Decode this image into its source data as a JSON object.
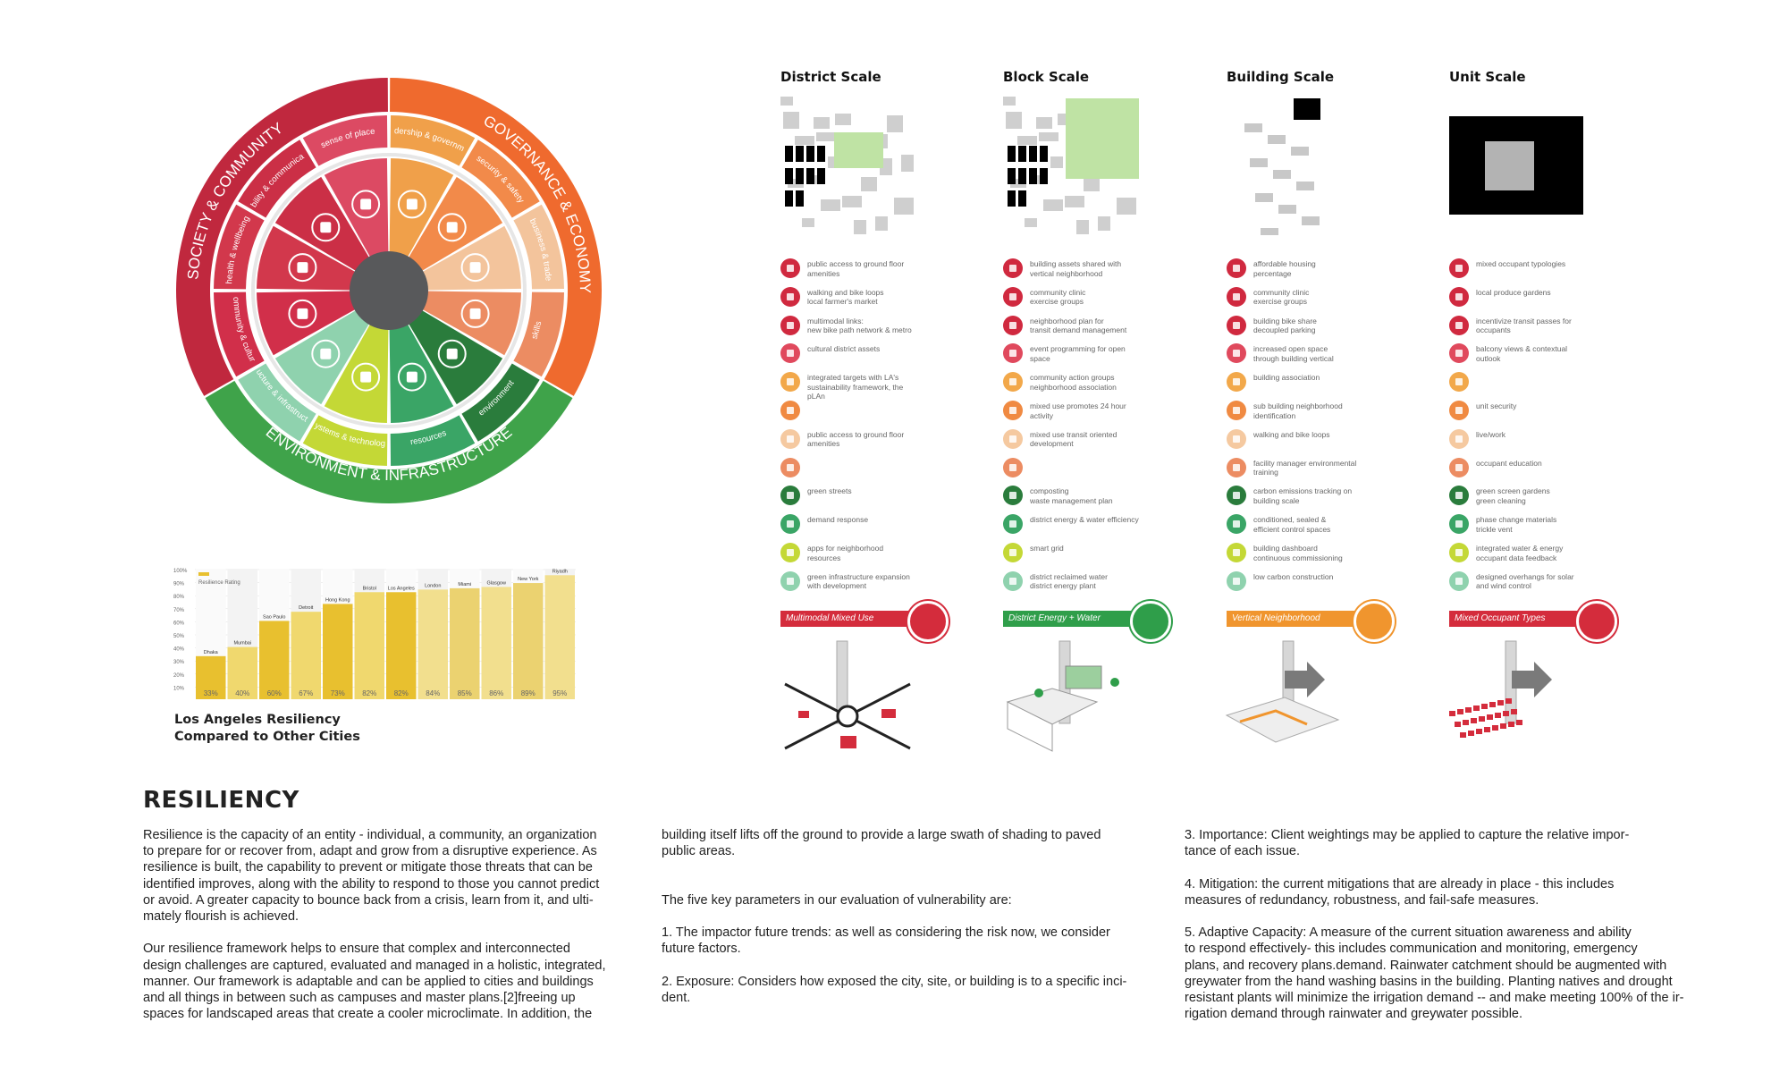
{
  "wheel": {
    "outer": [
      {
        "label": "SOCIETY & COMMUNITY",
        "color": "#c0283e"
      },
      {
        "label": "GOVERNANCE & ECONOMY",
        "color": "#ef6a2e"
      },
      {
        "label": "ENVIRONMENT & INFRASTRUCTURE",
        "color": "#3fa34a"
      }
    ],
    "ring": [
      {
        "label": "sense of place",
        "color": "#dc4a63"
      },
      {
        "label": "leadership & government",
        "color": "#f0a04a"
      },
      {
        "label": "security & safety",
        "color": "#f28a4a"
      },
      {
        "label": "business & trade",
        "color": "#f3c49c"
      },
      {
        "label": "skills",
        "color": "#ec8c62"
      },
      {
        "label": "environment",
        "color": "#2a7c3c"
      },
      {
        "label": "resources",
        "color": "#3aa566"
      },
      {
        "label": "systems & technology",
        "color": "#c4d836"
      },
      {
        "label": "structure & infrastructure",
        "color": "#8fd2ae"
      },
      {
        "label": "community & culture",
        "color": "#d12f4a"
      },
      {
        "label": "health & wellbeing",
        "color": "#d2384c"
      },
      {
        "label": "mobility & communication",
        "color": "#cb2f46"
      }
    ],
    "icons": [
      "flag-icon",
      "handshake-icon",
      "house-shield-icon",
      "briefcase-icon",
      "graduation-cap-icon",
      "globe-icon",
      "sun-icon",
      "at-icon",
      "rail-icon",
      "people-icon",
      "person-icon",
      "transit-icon"
    ]
  },
  "scales": [
    {
      "title": "District Scale",
      "items": [
        "public access to ground floor\namenities",
        "walking and bike loops\nlocal farmer's market",
        "multimodal links:\nnew bike path network & metro",
        "cultural district assets",
        "integrated targets with LA's\nsustainability framework, the\npLAn",
        "",
        "public access to ground floor\namenities",
        "",
        "green streets",
        "demand response",
        "apps for neighborhood\nresources",
        "green infrastructure expansion\nwith development"
      ],
      "banner": "Multimodal Mixed Use",
      "banner_color": "#d42c3c"
    },
    {
      "title": "Block Scale",
      "items": [
        "building assets shared with\nvertical neighborhood",
        "community clinic\nexercise groups",
        "neighborhood plan for\ntransit demand management",
        "event programming for open\nspace",
        "community action groups\nneighborhood association",
        "mixed use promotes 24 hour\nactivity",
        "mixed use transit oriented\ndevelopment",
        "",
        "composting\nwaste management plan",
        "district energy & water efficiency",
        "smart grid",
        "district reclaimed water\ndistrict energy plant"
      ],
      "banner": "District Energy + Water",
      "banner_color": "#2f9e4a"
    },
    {
      "title": "Building Scale",
      "items": [
        "affordable housing\npercentage",
        "community clinic\nexercise groups",
        "building bike share\ndecoupled parking",
        "increased open space\nthrough building vertical",
        "building association",
        "sub building neighborhood\nidentification",
        "walking and bike loops",
        "facility manager environmental\ntraining",
        "carbon emissions tracking on\nbuilding scale",
        "conditioned, sealed &\nefficient control spaces",
        "building dashboard\ncontinuous commissioning",
        "low carbon construction"
      ],
      "banner": "Vertical Neighborhood",
      "banner_color": "#f0952e"
    },
    {
      "title": "Unit Scale",
      "items": [
        "mixed occupant typologies",
        "local produce gardens",
        "incentivize transit passes for\noccupants",
        "balcony views & contextual\noutlook",
        "",
        "unit security",
        "live/work",
        "occupant education",
        "green screen gardens\ngreen cleaning",
        "phase change materials\ntrickle vent",
        "integrated water & energy\noccupant data feedback",
        "designed overhangs for solar\nand wind control"
      ],
      "banner": "Mixed Occupant Types",
      "banner_color": "#d42c3c"
    }
  ],
  "item_colors": [
    "#d0293f",
    "#d0293f",
    "#d0293f",
    "#e0495d",
    "#f2a84a",
    "#f08a42",
    "#f5c9a0",
    "#ec8c62",
    "#2a7c3c",
    "#3aa566",
    "#c4d836",
    "#8fd2ae"
  ],
  "chart_data": {
    "type": "bar",
    "legend": "Resilience Rating",
    "categories": [
      "Dhaka",
      "Mumbai",
      "Sao Paulo",
      "Detroit",
      "Hong Kong",
      "Bristol",
      "Los Angeles",
      "London",
      "Miami",
      "Glasgow",
      "New York",
      "Riyadh"
    ],
    "values": [
      33,
      40,
      60,
      67,
      73,
      82,
      82,
      84,
      85,
      86,
      89,
      95
    ],
    "value_labels": [
      "33%",
      "40%",
      "60%",
      "67%",
      "73%",
      "82%",
      "82%",
      "84%",
      "85%",
      "86%",
      "89%",
      "95%"
    ],
    "yticks": [
      "100%",
      "90%",
      "80%",
      "70%",
      "60%",
      "50%",
      "40%",
      "30%",
      "20%",
      "10%"
    ],
    "ylim": [
      0,
      100
    ]
  },
  "chart_caption": {
    "line1": "Los Angeles Resiliency",
    "line2": "Compared to Other Cities"
  },
  "text": {
    "heading": "RESILIENCY",
    "col1": "Resilience is the capacity of an entity - individual, a community, an organization\nto prepare for or recover from, adapt and grow from a disruptive experience. As\nresilience is built, the capability to prevent or mitigate those threats that can be\nidentified improves, along with the ability to respond to those you cannot predict\nor avoid. A greater capacity to bounce back from a crisis, learn from it, and ulti-\nmately flourish is achieved.\n\nOur resilience framework helps to ensure that complex and interconnected\ndesign challenges are captured, evaluated and managed in a holistic, integrated,\nmanner. Our framework is adaptable and can be applied to cities and buildings\nand all things in between such as campuses and master plans.[2]freeing up\nspaces for landscaped areas that create a cooler microclimate.  In addition, the",
    "col2": "building itself lifts off the ground to provide a large swath of shading to paved\npublic areas.\n\n\nThe five key parameters in our evaluation of vulnerability are:\n\n1. The impactor future trends: as well as considering the risk now, we consider\nfuture factors.\n\n2. Exposure: Considers how exposed the city, site, or building is to a specific inci-\ndent.",
    "col3": "3. Importance: Client weightings may be applied to capture the relative impor-\ntance of each issue.\n\n4. Mitigation: the current mitigations that are already in place - this includes\nmeasures of redundancy, robustness, and fail-safe measures.\n\n5. Adaptive Capacity: A measure of the current situation awareness and ability\nto respond effectively- this includes communication and monitoring, emergency\nplans,  and recovery plans.demand.  Rainwater catchment should be augmented with\ngreywater from the hand washing basins in the building.  Planting natives and drought\nresistant plants will minimize the irrigation demand -- and make meeting 100% of the ir-\nrigation demand through rainwater and greywater possible."
  }
}
